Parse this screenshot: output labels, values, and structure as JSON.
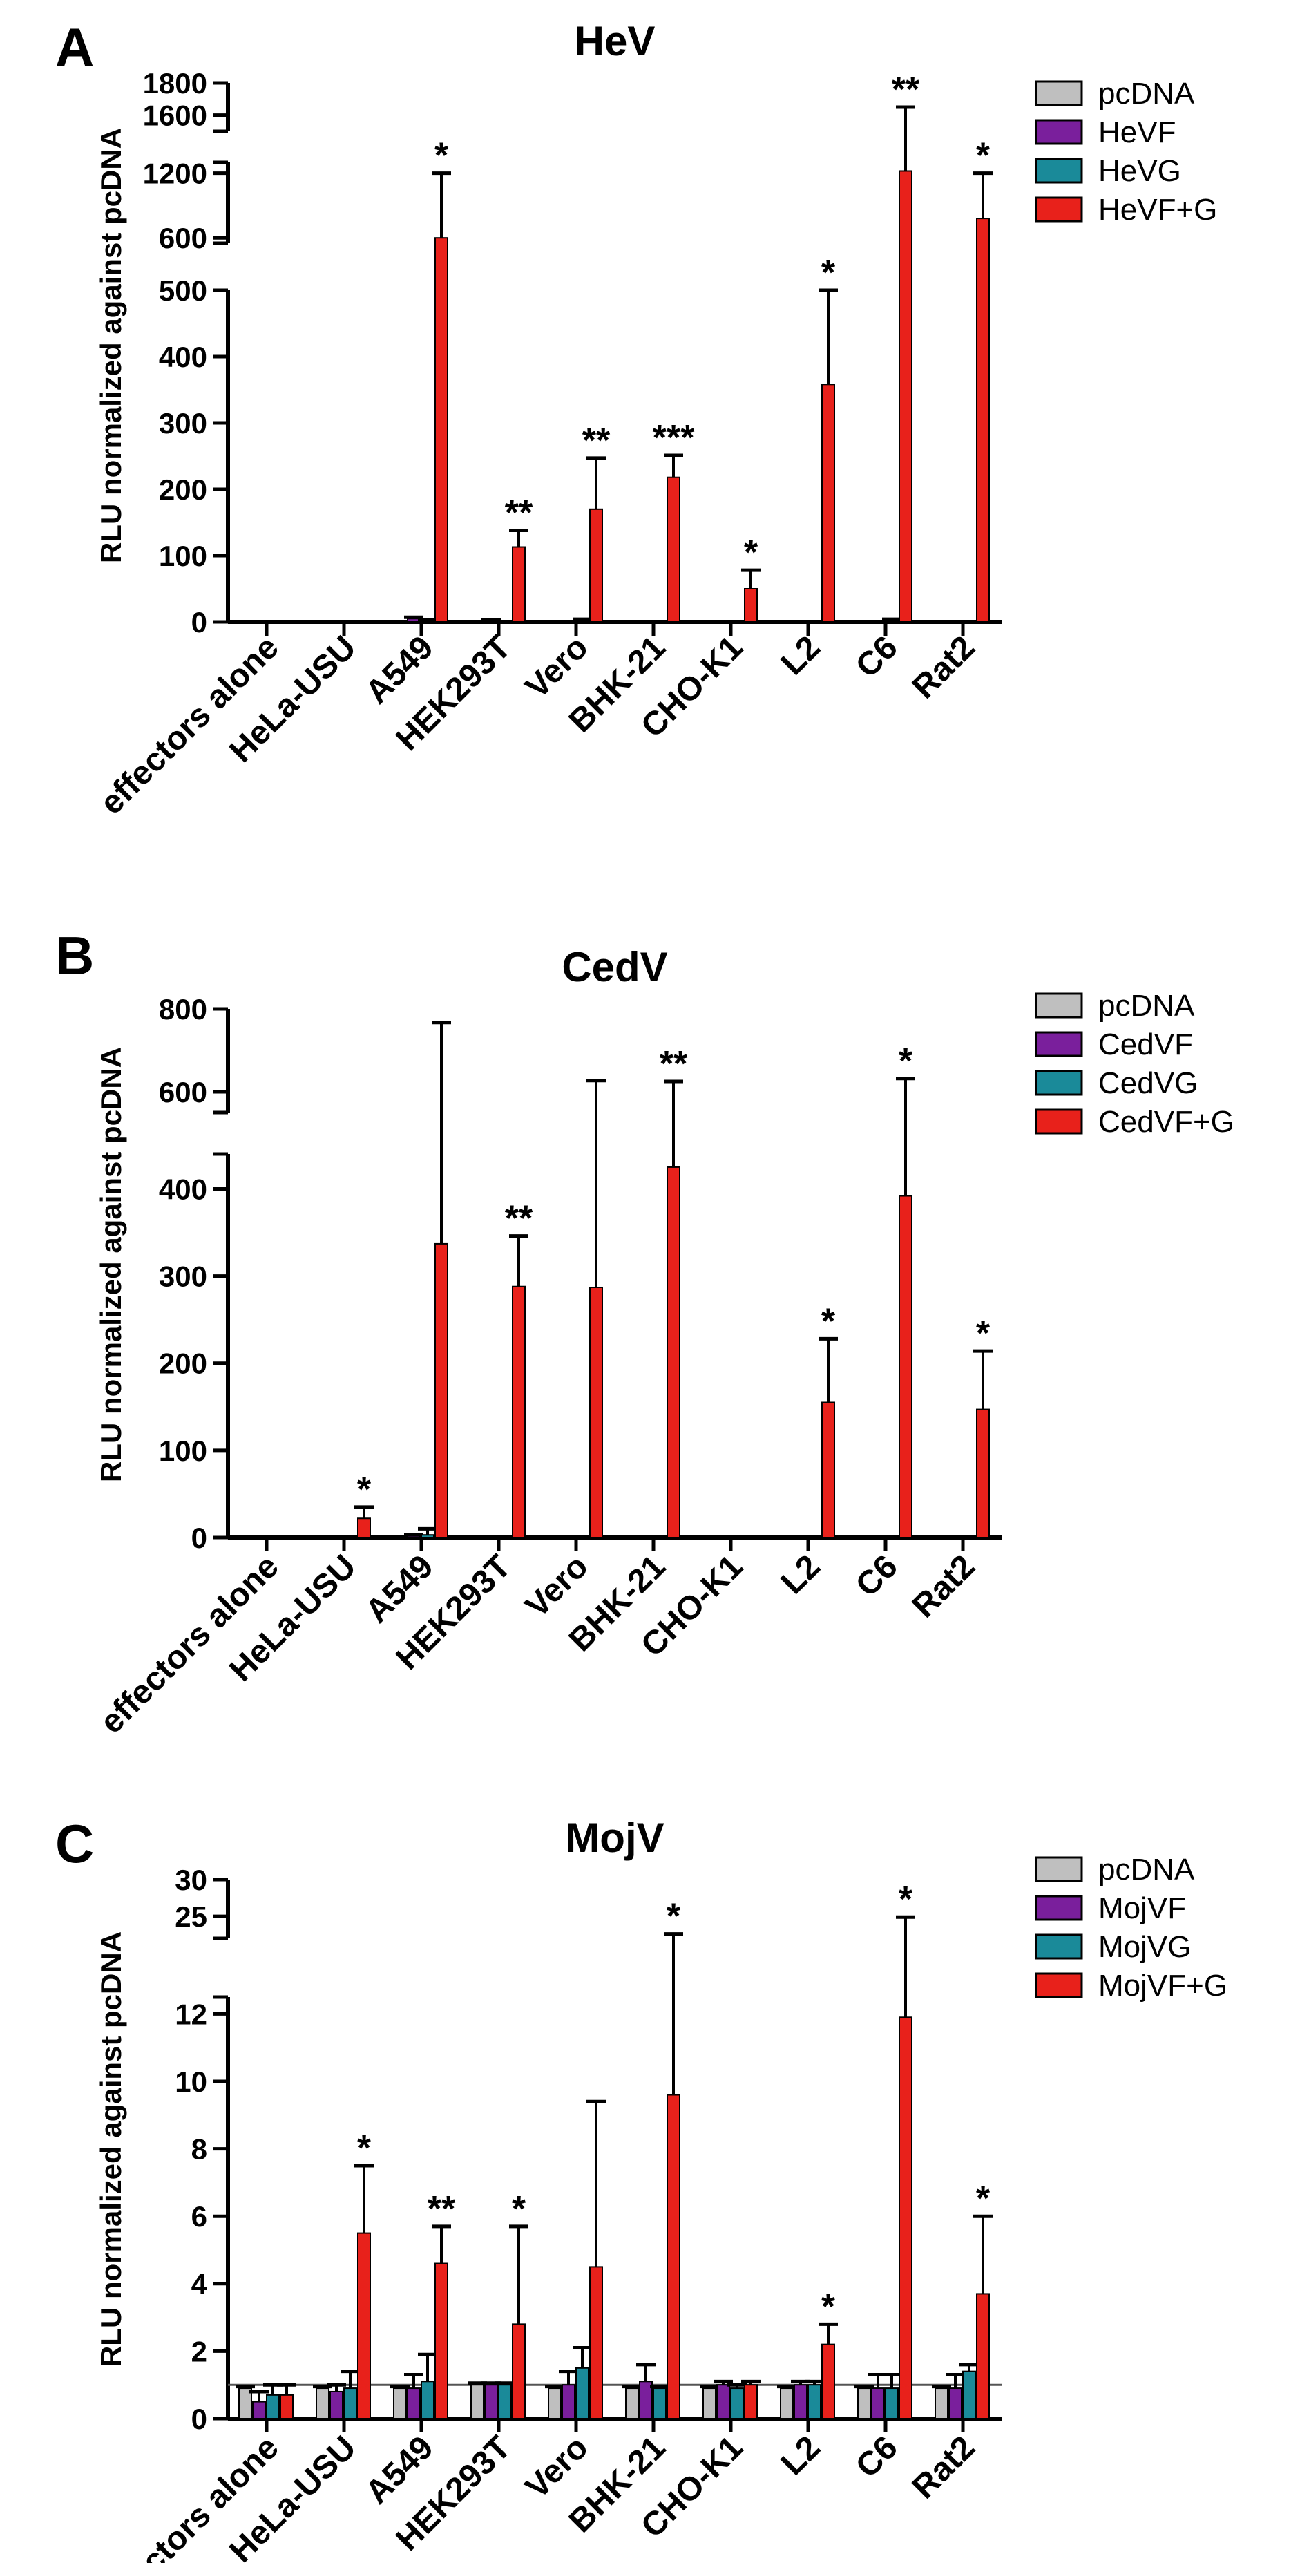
{
  "colors": {
    "pcDNA": "#bfbfbf",
    "F": "#7a1f9c",
    "G": "#1a8a99",
    "FG": "#e8211b",
    "axis": "#000000"
  },
  "chart_data": [
    {
      "panel": "A",
      "type": "bar",
      "title": "HeV",
      "ylabel": "RLU normalized against pcDNA",
      "categories": [
        "effectors alone",
        "HeLa-USU",
        "A549",
        "HEK293T",
        "Vero",
        "BHK-21",
        "CHO-K1",
        "L2",
        "C6",
        "Rat2"
      ],
      "legend": [
        "pcDNA",
        "HeVF",
        "HeVG",
        "HeVF+G"
      ],
      "axis_breaks": [
        {
          "ylim": [
            0,
            500
          ],
          "ticks": [
            "0",
            "100",
            "200",
            "300",
            "400",
            "500"
          ],
          "tick_values": [
            0,
            100,
            200,
            300,
            400,
            500
          ]
        },
        {
          "ylim": [
            550,
            1300
          ],
          "ticks": [
            "600",
            "1200"
          ],
          "tick_values": [
            600,
            1200
          ]
        },
        {
          "ylim": [
            1500,
            1800
          ],
          "ticks": [
            "1600",
            "1800"
          ],
          "tick_values": [
            1600,
            1800
          ]
        }
      ],
      "series": [
        {
          "name": "pcDNA",
          "values": [
            1,
            1,
            1,
            1,
            1,
            1,
            1,
            1,
            1,
            1
          ],
          "errors": [
            0,
            0,
            0,
            0,
            0,
            0,
            0,
            0,
            0,
            0
          ]
        },
        {
          "name": "HeVF",
          "values": [
            1,
            1,
            5,
            2,
            1,
            2,
            1,
            1,
            1,
            1
          ],
          "errors": [
            0,
            0,
            2,
            1,
            0,
            0,
            0,
            0,
            0,
            0
          ]
        },
        {
          "name": "HeVG",
          "values": [
            1,
            1,
            2,
            1,
            3,
            1,
            1,
            1,
            3,
            1
          ],
          "errors": [
            0,
            0,
            1,
            0,
            1,
            0,
            0,
            0,
            1,
            0
          ]
        },
        {
          "name": "HeVF+G",
          "values": [
            0,
            0,
            600,
            113,
            170,
            218,
            50,
            358,
            1220,
            780
          ],
          "errors": [
            0,
            0,
            600,
            25,
            77,
            33,
            28,
            157,
            430,
            420
          ]
        }
      ],
      "significance": [
        "",
        "",
        "*",
        "**",
        "**",
        "***",
        "*",
        "*",
        "**",
        "*"
      ]
    },
    {
      "panel": "B",
      "type": "bar",
      "title": "CedV",
      "ylabel": "RLU normalized against pcDNA",
      "categories": [
        "effectors alone",
        "HeLa-USU",
        "A549",
        "HEK293T",
        "Vero",
        "BHK-21",
        "CHO-K1",
        "L2",
        "C6",
        "Rat2"
      ],
      "legend": [
        "pcDNA",
        "CedVF",
        "CedVG",
        "CedVF+G"
      ],
      "axis_breaks": [
        {
          "ylim": [
            0,
            440
          ],
          "ticks": [
            "0",
            "100",
            "200",
            "300",
            "400"
          ],
          "tick_values": [
            0,
            100,
            200,
            300,
            400
          ]
        },
        {
          "ylim": [
            550,
            800
          ],
          "ticks": [
            "600",
            "800"
          ],
          "tick_values": [
            600,
            800
          ]
        }
      ],
      "series": [
        {
          "name": "pcDNA",
          "values": [
            1,
            1,
            1,
            1,
            1,
            1,
            1,
            1,
            1,
            1
          ],
          "errors": [
            0,
            0,
            0,
            0,
            0,
            0,
            0,
            0,
            0,
            0
          ]
        },
        {
          "name": "CedVF",
          "values": [
            1,
            1,
            2,
            1,
            1,
            1,
            1,
            1,
            1,
            1
          ],
          "errors": [
            0,
            0,
            1,
            0,
            0,
            0,
            0,
            0,
            0,
            0
          ]
        },
        {
          "name": "CedVG",
          "values": [
            1,
            1,
            3,
            1,
            1,
            1,
            1,
            1,
            1,
            1
          ],
          "errors": [
            0,
            0,
            7,
            0,
            0,
            0,
            0,
            0,
            0,
            0
          ]
        },
        {
          "name": "CedVF+G",
          "values": [
            0,
            22,
            337,
            288,
            287,
            425,
            0,
            155,
            392,
            147
          ],
          "errors": [
            0,
            13,
            430,
            58,
            340,
            200,
            0,
            73,
            240,
            67
          ]
        }
      ],
      "significance": [
        "",
        "*",
        "",
        "**",
        "",
        "**",
        "",
        "*",
        "*",
        "*"
      ]
    },
    {
      "panel": "C",
      "type": "bar",
      "title": "MojV",
      "ylabel": "RLU normalized against pcDNA",
      "categories": [
        "effectors alone",
        "HeLa-USU",
        "A549",
        "HEK293T",
        "Vero",
        "BHK-21",
        "CHO-K1",
        "L2",
        "C6",
        "Rat2"
      ],
      "legend": [
        "pcDNA",
        "MojVF",
        "MojVG",
        "MojVF+G"
      ],
      "axis_breaks": [
        {
          "ylim": [
            0,
            12.5
          ],
          "ticks": [
            "0",
            "2",
            "4",
            "6",
            "8",
            "10",
            "12"
          ],
          "tick_values": [
            0,
            2,
            4,
            6,
            8,
            10,
            12
          ]
        },
        {
          "ylim": [
            22,
            30
          ],
          "ticks": [
            "25",
            "30"
          ],
          "tick_values": [
            25,
            30
          ]
        }
      ],
      "reference_line": 1,
      "series": [
        {
          "name": "pcDNA",
          "values": [
            0.9,
            0.9,
            0.9,
            1.0,
            0.9,
            0.9,
            0.9,
            0.9,
            0.9,
            0.9
          ],
          "errors": [
            0.05,
            0.05,
            0.05,
            0.05,
            0.05,
            0.05,
            0.05,
            0.05,
            0.05,
            0.05
          ]
        },
        {
          "name": "MojVF",
          "values": [
            0.5,
            0.8,
            0.9,
            1.0,
            1.0,
            1.1,
            1.0,
            1.0,
            0.9,
            0.9
          ],
          "errors": [
            0.3,
            0.2,
            0.4,
            0.05,
            0.4,
            0.5,
            0.1,
            0.1,
            0.4,
            0.4
          ]
        },
        {
          "name": "MojVG",
          "values": [
            0.7,
            0.9,
            1.1,
            1.0,
            1.5,
            0.9,
            0.9,
            1.0,
            0.9,
            1.4
          ],
          "errors": [
            0.3,
            0.5,
            0.8,
            0.05,
            0.6,
            0.05,
            0.1,
            0.1,
            0.4,
            0.2
          ]
        },
        {
          "name": "MojVF+G",
          "values": [
            0.7,
            5.5,
            4.6,
            2.8,
            4.5,
            9.6,
            1.0,
            2.2,
            11.9,
            3.7
          ],
          "errors": [
            0.3,
            2.0,
            1.1,
            2.9,
            4.9,
            13.0,
            0.1,
            0.6,
            13.0,
            2.3
          ]
        }
      ],
      "significance": [
        "",
        "*",
        "**",
        "*",
        "",
        "*",
        "",
        "*",
        "*",
        "*"
      ]
    }
  ]
}
